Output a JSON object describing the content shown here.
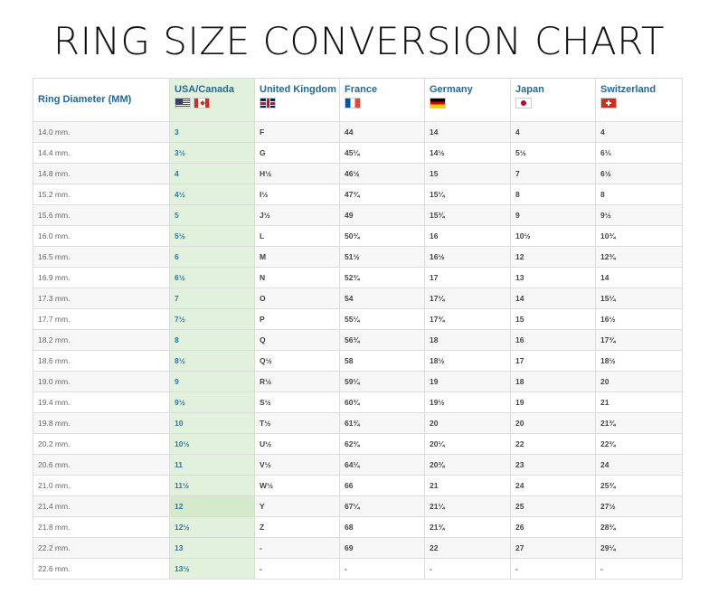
{
  "title": "RING SIZE CONVERSION CHART",
  "columns": {
    "diameter": "Ring Diameter (MM)",
    "us": "USA/Canada",
    "uk": "United Kingdom",
    "fr": "France",
    "de": "Germany",
    "jp": "Japan",
    "ch": "Switzerland"
  },
  "flags": {
    "us": "us-flag-icon",
    "ca": "canada-flag-icon",
    "uk": "uk-flag-icon",
    "fr": "france-flag-icon",
    "de": "germany-flag-icon",
    "jp": "japan-flag-icon",
    "ch": "switzerland-flag-icon"
  },
  "colors": {
    "header_text": "#1e6a9a",
    "us_column_bg": "#e2f1dc",
    "us_text": "#2b78a8"
  },
  "rows": [
    {
      "diameter": "14.0 mm.",
      "us": "3",
      "uk": "F",
      "fr": "44",
      "de": "14",
      "jp": "4",
      "ch": "4"
    },
    {
      "diameter": "14.4 mm.",
      "us": "3½",
      "uk": "G",
      "fr": "45¼",
      "de": "14½",
      "jp": "5½",
      "ch": "6⅓"
    },
    {
      "diameter": "14.8 mm.",
      "us": "4",
      "uk": "H½",
      "fr": "46½",
      "de": "15",
      "jp": "7",
      "ch": "6½"
    },
    {
      "diameter": "15.2 mm.",
      "us": "4½",
      "uk": "I½",
      "fr": "47¾",
      "de": "15¼",
      "jp": "8",
      "ch": "8"
    },
    {
      "diameter": "15.6 mm.",
      "us": "5",
      "uk": "J½",
      "fr": "49",
      "de": "15¾",
      "jp": "9",
      "ch": "9½"
    },
    {
      "diameter": "16.0 mm.",
      "us": "5½",
      "uk": "L",
      "fr": "50¾",
      "de": "16",
      "jp": "10½",
      "ch": "10¾"
    },
    {
      "diameter": "16.5 mm.",
      "us": "6",
      "uk": "M",
      "fr": "51½",
      "de": "16½",
      "jp": "12",
      "ch": "12¾"
    },
    {
      "diameter": "16.9 mm.",
      "us": "6½",
      "uk": "N",
      "fr": "52¾",
      "de": "17",
      "jp": "13",
      "ch": "14"
    },
    {
      "diameter": "17.3 mm.",
      "us": "7",
      "uk": "O",
      "fr": "54",
      "de": "17¼",
      "jp": "14",
      "ch": "15¼"
    },
    {
      "diameter": "17.7 mm.",
      "us": "7½",
      "uk": "P",
      "fr": "55¼",
      "de": "17¾",
      "jp": "15",
      "ch": "16½"
    },
    {
      "diameter": "18.2 mm.",
      "us": "8",
      "uk": "Q",
      "fr": "56¾",
      "de": "18",
      "jp": "16",
      "ch": "17¾"
    },
    {
      "diameter": "18.6 mm.",
      "us": "8½",
      "uk": "Q½",
      "fr": "58",
      "de": "18½",
      "jp": "17",
      "ch": "18½"
    },
    {
      "diameter": "19.0 mm.",
      "us": "9",
      "uk": "R½",
      "fr": "59¼",
      "de": "19",
      "jp": "18",
      "ch": "20"
    },
    {
      "diameter": "19.4 mm.",
      "us": "9½",
      "uk": "S½",
      "fr": "60¾",
      "de": "19½",
      "jp": "19",
      "ch": "21"
    },
    {
      "diameter": "19.8 mm.",
      "us": "10",
      "uk": "T½",
      "fr": "61¾",
      "de": "20",
      "jp": "20",
      "ch": "21¾"
    },
    {
      "diameter": "20.2 mm.",
      "us": "10½",
      "uk": "U½",
      "fr": "62¾",
      "de": "20¼",
      "jp": "22",
      "ch": "22¾"
    },
    {
      "diameter": "20.6 mm.",
      "us": "11",
      "uk": "V½",
      "fr": "64¼",
      "de": "20¾",
      "jp": "23",
      "ch": "24"
    },
    {
      "diameter": "21.0 mm.",
      "us": "11½",
      "uk": "W½",
      "fr": "66",
      "de": "21",
      "jp": "24",
      "ch": "25¾"
    },
    {
      "diameter": "21.4 mm.",
      "us": "12",
      "uk": "Y",
      "fr": "67¼",
      "de": "21¼",
      "jp": "25",
      "ch": "27½"
    },
    {
      "diameter": "21.8 mm.",
      "us": "12½",
      "uk": "Z",
      "fr": "68",
      "de": "21¾",
      "jp": "26",
      "ch": "28¾"
    },
    {
      "diameter": "22.2 mm.",
      "us": "13",
      "uk": "-",
      "fr": "69",
      "de": "22",
      "jp": "27",
      "ch": "29¼"
    },
    {
      "diameter": "22.6 mm.",
      "us": "13½",
      "uk": "-",
      "fr": "-",
      "de": "-",
      "jp": "-",
      "ch": "-"
    }
  ]
}
